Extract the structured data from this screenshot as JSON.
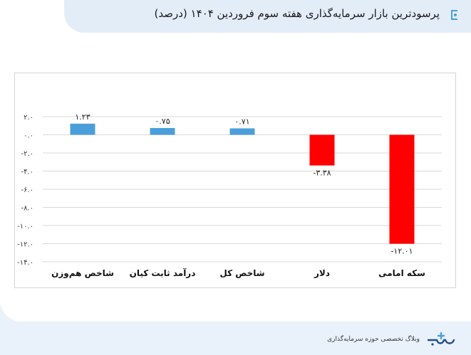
{
  "header": {
    "title": "پرسودترین بازار سرمایه‌گذاری هفته سوم فروردین ۱۴۰۴ (درصد)"
  },
  "footer": {
    "tagline": "وبلاگ تخصصی حوزه سرمایه‌گذاری",
    "logo_icon": "sarmayeh-logo-icon"
  },
  "colors": {
    "positive": "#4a9fdb",
    "negative": "#ff0000",
    "accent": "#4a9fdb",
    "grid": "#d9d9d9"
  },
  "chart_data": {
    "type": "bar",
    "categories": [
      "شاخص هم‌وزن",
      "درآمد ثابت کیان",
      "شاخص کل",
      "دلار",
      "سکه امامی"
    ],
    "values": [
      1.23,
      0.75,
      0.71,
      -3.38,
      -12.01
    ],
    "value_labels": [
      "۱.۲۳",
      "۰.۷۵",
      "۰.۷۱",
      "-۳.۳۸",
      "-۱۲.۰۱"
    ],
    "ylim": [
      -14,
      2
    ],
    "yticks": [
      2,
      0,
      -2,
      -4,
      -6,
      -8,
      -10,
      -12,
      -14
    ],
    "ytick_labels": [
      "۲.۰",
      "۰.۰",
      "-۲.۰",
      "-۴.۰",
      "-۶.۰",
      "-۸.۰",
      "-۱۰.۰",
      "-۱۲.۰",
      "-۱۴.۰"
    ],
    "grid": true,
    "title": "",
    "xlabel": "",
    "ylabel": ""
  }
}
